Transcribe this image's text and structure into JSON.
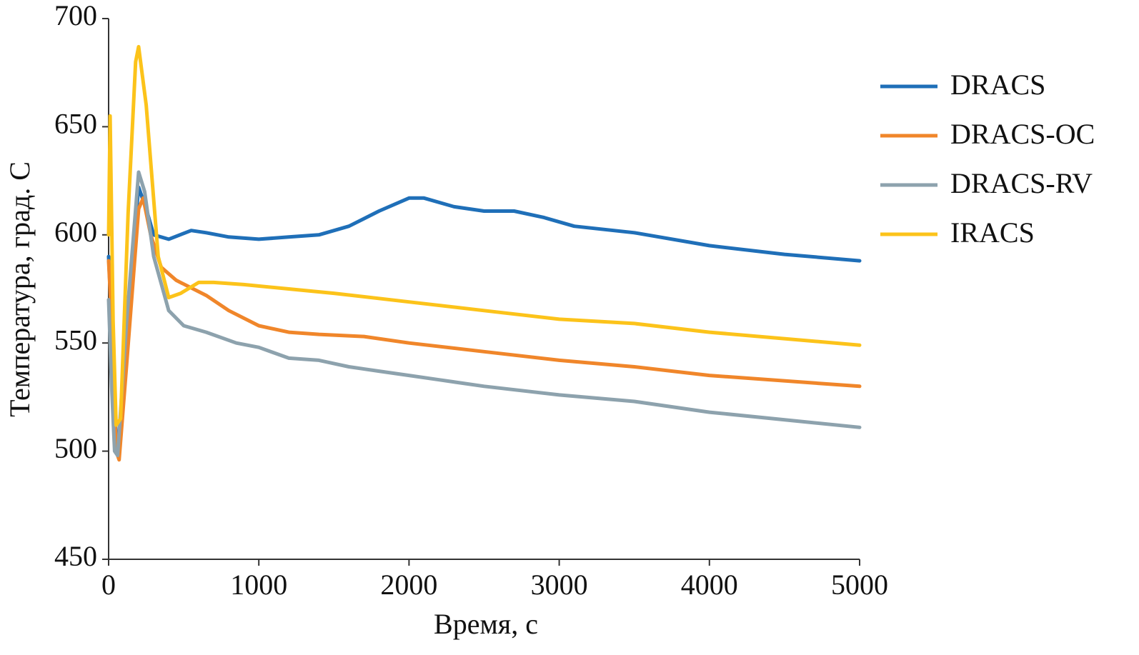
{
  "chart_data": {
    "type": "line",
    "x_label": "Время, с",
    "y_label": "Температура, град. С",
    "xlim": [
      0,
      5000
    ],
    "xticks": [
      0,
      1000,
      2000,
      3000,
      4000,
      5000
    ],
    "ylim": [
      450,
      700
    ],
    "yticks": [
      450,
      500,
      550,
      600,
      650,
      700
    ],
    "legend": "right",
    "series": [
      {
        "name": "DRACS",
        "color": "#1f6fb8",
        "x": [
          0,
          20,
          50,
          70,
          120,
          200,
          250,
          300,
          400,
          550,
          650,
          800,
          1000,
          1200,
          1400,
          1600,
          1800,
          2000,
          2100,
          2300,
          2500,
          2700,
          2900,
          3100,
          3500,
          4000,
          4500,
          5000
        ],
        "values": [
          590,
          560,
          505,
          500,
          560,
          622,
          612,
          600,
          598,
          602,
          601,
          599,
          598,
          599,
          600,
          604,
          611,
          617,
          617,
          613,
          611,
          611,
          608,
          604,
          601,
          595,
          591,
          588
        ]
      },
      {
        "name": "DRACS-OC",
        "color": "#f0862a",
        "x": [
          0,
          20,
          50,
          70,
          120,
          200,
          230,
          280,
          350,
          450,
          650,
          800,
          1000,
          1200,
          1400,
          1700,
          2000,
          2500,
          3000,
          3500,
          4000,
          5000
        ],
        "values": [
          588,
          560,
          500,
          496,
          540,
          612,
          617,
          600,
          585,
          579,
          572,
          565,
          558,
          555,
          554,
          553,
          550,
          546,
          542,
          539,
          535,
          530
        ]
      },
      {
        "name": "DRACS-RV",
        "color": "#8da2ad",
        "x": [
          0,
          20,
          40,
          60,
          120,
          200,
          240,
          300,
          400,
          500,
          650,
          850,
          1000,
          1200,
          1400,
          1600,
          1800,
          2000,
          2200,
          2500,
          3000,
          3500,
          4000,
          5000
        ],
        "values": [
          570,
          530,
          500,
          498,
          560,
          629,
          620,
          590,
          565,
          558,
          555,
          550,
          548,
          543,
          542,
          539,
          537,
          535,
          533,
          530,
          526,
          523,
          518,
          511
        ]
      },
      {
        "name": "IRACS",
        "color": "#fcc31a",
        "x": [
          0,
          10,
          30,
          50,
          80,
          130,
          180,
          200,
          250,
          330,
          400,
          480,
          600,
          700,
          900,
          1200,
          1500,
          2000,
          2500,
          3000,
          3500,
          4000,
          5000
        ],
        "values": [
          600,
          655,
          560,
          512,
          515,
          610,
          680,
          687,
          660,
          590,
          571,
          573,
          578,
          578,
          577,
          575,
          573,
          569,
          565,
          561,
          559,
          555,
          549
        ]
      }
    ]
  }
}
